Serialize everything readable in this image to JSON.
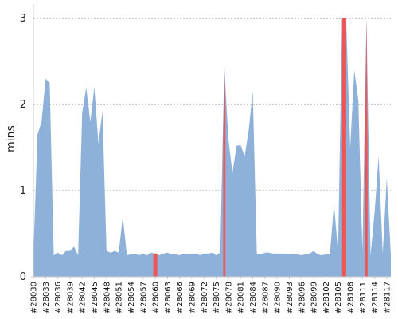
{
  "chart_data": {
    "type": "area",
    "title": "",
    "xlabel": "",
    "ylabel": "mins",
    "ylim": [
      0,
      3
    ],
    "yticks": [
      "0",
      "1",
      "2",
      "3"
    ],
    "grid": "horizontal-dotted",
    "colors": {
      "area": "#8eb1da",
      "highlight": "#ee5555",
      "grid": "#999999",
      "axis": "#cccccc"
    },
    "x": [
      28030,
      28031,
      28032,
      28033,
      28034,
      28035,
      28036,
      28037,
      28038,
      28039,
      28040,
      28041,
      28042,
      28043,
      28044,
      28045,
      28046,
      28047,
      28048,
      28049,
      28050,
      28051,
      28052,
      28053,
      28054,
      28055,
      28056,
      28057,
      28058,
      28059,
      28060,
      28061,
      28062,
      28063,
      28064,
      28065,
      28066,
      28067,
      28068,
      28069,
      28070,
      28071,
      28072,
      28073,
      28074,
      28075,
      28076,
      28077,
      28078,
      28079,
      28080,
      28081,
      28082,
      28083,
      28084,
      28085,
      28086,
      28087,
      28088,
      28089,
      28090,
      28091,
      28092,
      28093,
      28094,
      28095,
      28096,
      28097,
      28098,
      28099,
      28100,
      28101,
      28102,
      28103,
      28104,
      28105,
      28106,
      28107,
      28108,
      28109,
      28110,
      28111,
      28112,
      28113,
      28114,
      28115,
      28116,
      28117,
      28118
    ],
    "x_tick_labels": [
      "#28030",
      "#28033",
      "#28036",
      "#28039",
      "#28042",
      "#28045",
      "#28048",
      "#28051",
      "#28054",
      "#28057",
      "#28060",
      "#28063",
      "#28066",
      "#28069",
      "#28072",
      "#28075",
      "#28078",
      "#28081",
      "#28084",
      "#28087",
      "#28090",
      "#28093",
      "#28096",
      "#28099",
      "#28102",
      "#28105",
      "#28108",
      "#28111",
      "#28114",
      "#28117"
    ],
    "series": [
      {
        "values": [
          0.25,
          1.65,
          1.8,
          2.3,
          2.25,
          0.25,
          0.28,
          0.25,
          0.3,
          0.3,
          0.35,
          0.25,
          1.9,
          2.2,
          1.8,
          2.2,
          1.55,
          1.92,
          0.3,
          0.28,
          0.3,
          0.28,
          0.7,
          0.25,
          0.26,
          0.27,
          0.25,
          0.27,
          0.25,
          0.28,
          0.27,
          0.25,
          0.27,
          0.28,
          0.26,
          0.26,
          0.25,
          0.27,
          0.26,
          0.27,
          0.27,
          0.25,
          0.27,
          0.27,
          0.28,
          0.25,
          0.28,
          2.45,
          1.6,
          1.2,
          1.52,
          1.53,
          1.4,
          1.7,
          2.15,
          0.27,
          0.26,
          0.28,
          0.28,
          0.27,
          0.27,
          0.27,
          0.27,
          0.26,
          0.27,
          0.26,
          0.25,
          0.26,
          0.27,
          0.3,
          0.26,
          0.25,
          0.26,
          0.26,
          0.85,
          0.28,
          3.0,
          3.0,
          1.5,
          2.4,
          2.05,
          0.3,
          3.0,
          0.25,
          0.75,
          1.4,
          0.27,
          1.15,
          0.25
        ]
      }
    ],
    "highlighted": [
      30,
      47,
      76,
      77,
      82
    ]
  }
}
